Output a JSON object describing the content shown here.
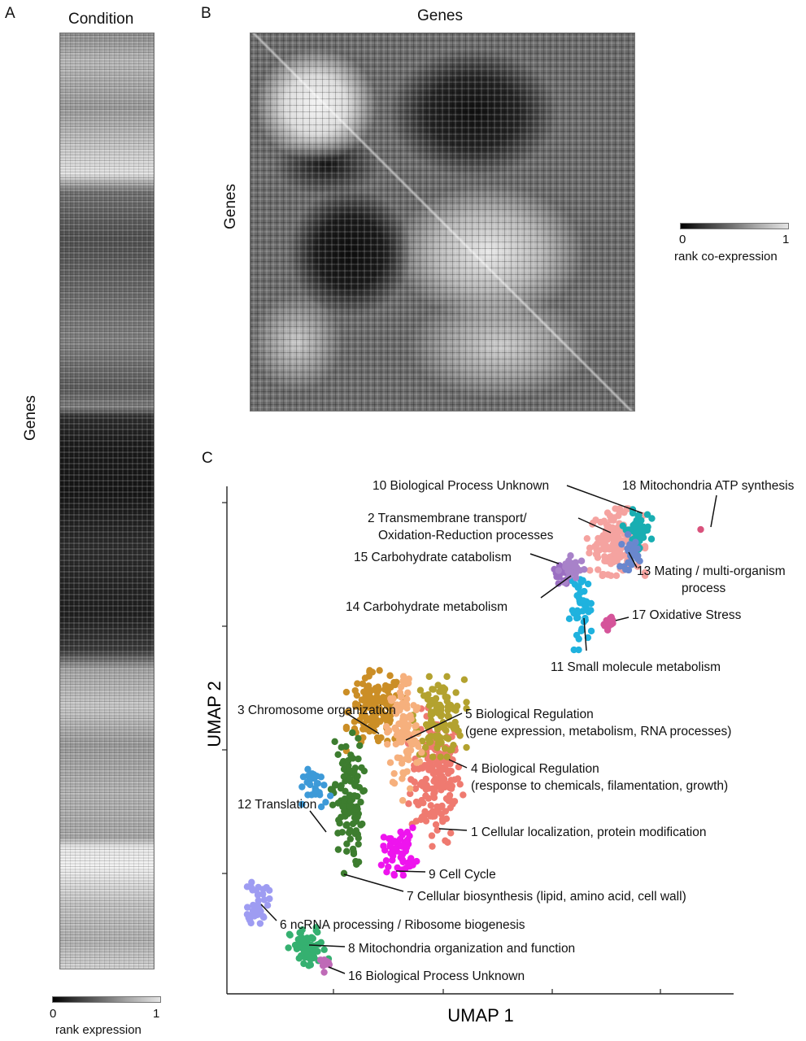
{
  "panel_a": {
    "letter": "A",
    "top_label": "Condition",
    "left_label": "Genes",
    "colorbar": {
      "min_label": "0",
      "max_label": "1",
      "title": "rank expression"
    }
  },
  "panel_b": {
    "letter": "B",
    "top_label": "Genes",
    "left_label": "Genes",
    "colorbar": {
      "min_label": "0",
      "max_label": "1",
      "title": "rank co-expression"
    }
  },
  "panel_c": {
    "letter": "C"
  },
  "chart_data": [
    {
      "type": "heatmap",
      "panel": "A",
      "xlabel": "Condition",
      "ylabel": "Genes",
      "color_scale": {
        "min": 0,
        "max": 1,
        "label": "rank expression",
        "colors": [
          "#000000",
          "#ffffff"
        ]
      }
    },
    {
      "type": "heatmap",
      "panel": "B",
      "xlabel": "Genes",
      "ylabel": "Genes",
      "color_scale": {
        "min": 0,
        "max": 1,
        "label": "rank co-expression",
        "colors": [
          "#000000",
          "#ffffff"
        ]
      }
    },
    {
      "type": "scatter",
      "panel": "C",
      "xlabel": "UMAP 1",
      "ylabel": "UMAP 2",
      "xlim": [
        0,
        100
      ],
      "ylim": [
        0,
        100
      ],
      "grid": false,
      "legend": "none",
      "clusters": [
        {
          "id": 1,
          "label": "1 Cellular localization, protein modification",
          "color": "#ef7a70",
          "center": [
            41.3,
            42.7
          ],
          "spread": [
            2.5,
            6.2
          ],
          "n": 180
        },
        {
          "id": 2,
          "label": "2 Transmembrane transport/ Oxidation-Reduction processes",
          "color": "#f5a3a0",
          "center": [
            76.8,
            89.0
          ],
          "spread": [
            2.6,
            3.0
          ],
          "n": 150
        },
        {
          "id": 3,
          "label": "3 Chromosome organization",
          "color": "#cb8e26",
          "center": [
            29.3,
            55.8
          ],
          "spread": [
            2.6,
            3.6
          ],
          "n": 140
        },
        {
          "id": 4,
          "label": "4 Biological Regulation (response to chemicals, filamentation, growth)",
          "color": "#b3a22f",
          "center": [
            42.0,
            54.6
          ],
          "spread": [
            2.4,
            3.6
          ],
          "n": 110
        },
        {
          "id": 5,
          "label": "5 Biological Regulation (gene expression, metabolism, RNA processes)",
          "color": "#f6b07d",
          "center": [
            35.0,
            51.3
          ],
          "spread": [
            1.6,
            6.0
          ],
          "n": 110
        },
        {
          "id": 6,
          "label": "6 ncRNA processing / Ribosome biogenesis",
          "color": "#9e9cf2",
          "center": [
            6.2,
            18.5
          ],
          "spread": [
            1.0,
            2.4
          ],
          "n": 40
        },
        {
          "id": 7,
          "label": "7 Cellular biosynthesis (lipid, amino acid, cell wall)",
          "color": "#3d7d2f",
          "center": [
            23.8,
            37.6
          ],
          "spread": [
            1.5,
            6.3
          ],
          "n": 110
        },
        {
          "id": 8,
          "label": "8 Mitochondria organization and function",
          "color": "#35b070",
          "center": [
            16.1,
            8.8
          ],
          "spread": [
            1.8,
            2.0
          ],
          "n": 70
        },
        {
          "id": 9,
          "label": "9 Cell Cycle",
          "color": "#ee14ee",
          "center": [
            34.0,
            28.2
          ],
          "spread": [
            1.6,
            2.2
          ],
          "n": 55
        },
        {
          "id": 10,
          "label": "10 Biological Process Unknown",
          "color": "#19aeb2",
          "center": [
            81.0,
            91.5
          ],
          "spread": [
            1.3,
            1.8
          ],
          "n": 45
        },
        {
          "id": 11,
          "label": "11 Small molecule metabolism",
          "color": "#1fb2de",
          "center": [
            70.0,
            75.7
          ],
          "spread": [
            1.1,
            3.6
          ],
          "n": 45
        },
        {
          "id": 12,
          "label": "12 Translation",
          "color": "#3d9ad8",
          "center": [
            17.9,
            40.5
          ],
          "spread": [
            1.4,
            1.8
          ],
          "n": 30
        },
        {
          "id": 13,
          "label": "13 Mating / multi-organism process",
          "color": "#6987ce",
          "center": [
            79.5,
            87.0
          ],
          "spread": [
            0.9,
            1.6
          ],
          "n": 25
        },
        {
          "id": 14,
          "label": "14 Carbohydrate metabolism",
          "color": "#9b6fc2",
          "center": [
            66.2,
            82.5
          ],
          "spread": [
            0.9,
            1.0
          ],
          "n": 18
        },
        {
          "id": 15,
          "label": "15 Carbohydrate catabolism",
          "color": "#a882c9",
          "center": [
            68.1,
            83.7
          ],
          "spread": [
            1.2,
            1.2
          ],
          "n": 30
        },
        {
          "id": 16,
          "label": "16 Biological Process Unknown",
          "color": "#bf6ab7",
          "center": [
            19.1,
            6.0
          ],
          "spread": [
            0.5,
            0.8
          ],
          "n": 10
        },
        {
          "id": 17,
          "label": "17 Oxidative Stress",
          "color": "#d5559a",
          "center": [
            75.2,
            73.2
          ],
          "spread": [
            0.6,
            0.7
          ],
          "n": 14
        },
        {
          "id": 18,
          "label": "18 Mitochondria ATP synthesis",
          "color": "#d9527c",
          "center": [
            93.5,
            91.5
          ],
          "spread": [
            0.2,
            0.2
          ],
          "n": 1
        }
      ]
    }
  ]
}
